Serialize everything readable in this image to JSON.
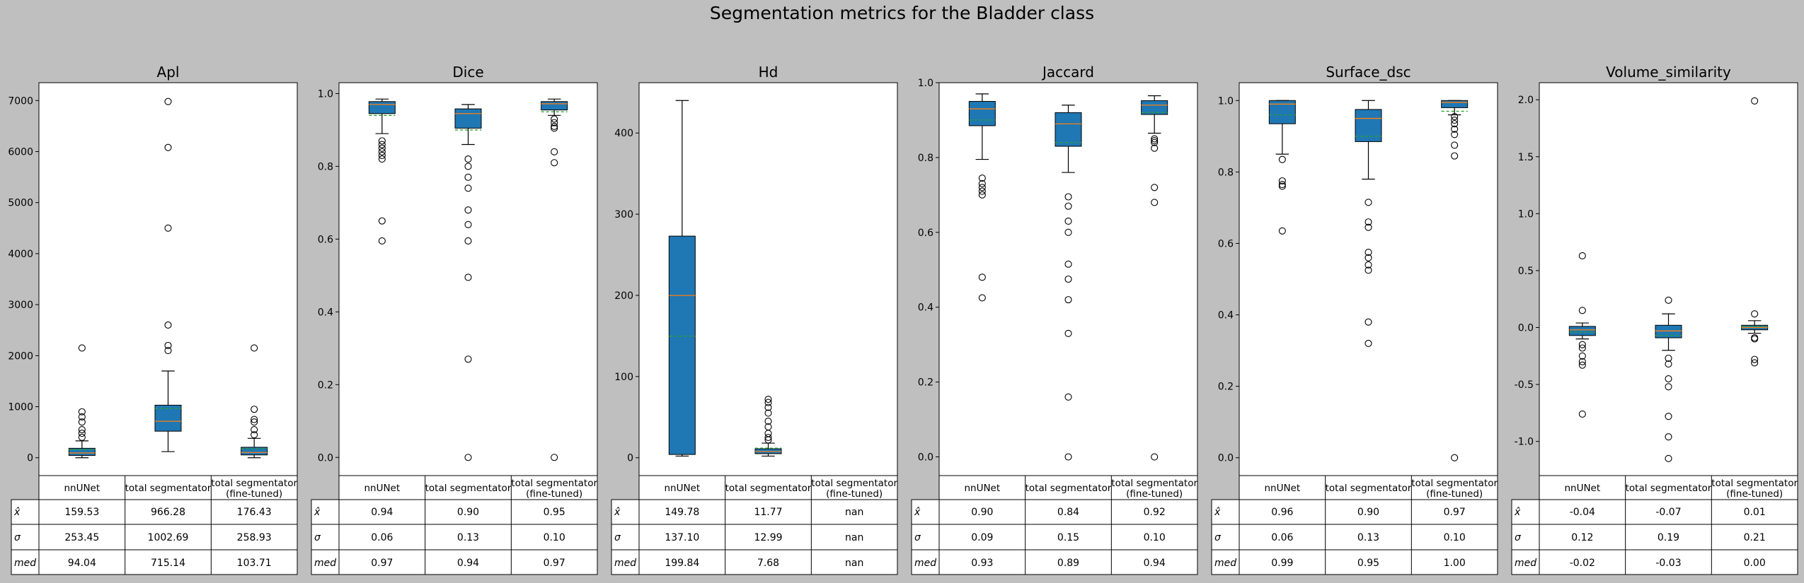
{
  "suptitle": "Segmentation metrics for the Bladder class",
  "colors": {
    "box_fill": "#1f77b4",
    "median": "#ff7f0e",
    "mean": "#2ca02c",
    "figure_bg": "#bfbfbf"
  },
  "table_row_labels": [
    "x̂",
    "σ",
    "med"
  ],
  "chart_data": [
    {
      "type": "box",
      "title": "Apl",
      "categories": [
        "nnUNet",
        "total segmentator",
        "total segmentator\n(fine-tuned)"
      ],
      "ylim": [
        -350,
        7350
      ],
      "yticks": [
        0,
        1000,
        2000,
        3000,
        4000,
        5000,
        6000,
        7000
      ],
      "boxes": [
        {
          "q1": 45,
          "median": 94.04,
          "q3": 185,
          "whislo": 0,
          "whishi": 330,
          "mean": 159.53,
          "fliers": [
            400,
            480,
            550,
            700,
            800,
            900,
            2150
          ]
        },
        {
          "q1": 520,
          "median": 715.14,
          "q3": 1030,
          "whislo": 120,
          "whishi": 1700,
          "mean": 966.28,
          "fliers": [
            2100,
            2200,
            2600,
            4500,
            6080,
            6980
          ]
        },
        {
          "q1": 55,
          "median": 103.71,
          "q3": 205,
          "whislo": 0,
          "whishi": 380,
          "mean": 176.43,
          "fliers": [
            450,
            550,
            700,
            750,
            950,
            2150
          ]
        }
      ],
      "table": [
        [
          "159.53",
          "966.28",
          "176.43"
        ],
        [
          "253.45",
          "1002.69",
          "258.93"
        ],
        [
          "94.04",
          "715.14",
          "103.71"
        ]
      ]
    },
    {
      "type": "box",
      "title": "Dice",
      "categories": [
        "nnUNet",
        "total segmentator",
        "total segmentator\n(fine-tuned)"
      ],
      "ylim": [
        -0.05,
        1.03
      ],
      "yticks": [
        0.0,
        0.2,
        0.4,
        0.6,
        0.8,
        1.0
      ],
      "boxes": [
        {
          "q1": 0.945,
          "median": 0.97,
          "q3": 0.978,
          "whislo": 0.89,
          "whishi": 0.985,
          "mean": 0.94,
          "fliers": [
            0.87,
            0.86,
            0.85,
            0.84,
            0.83,
            0.82,
            0.65,
            0.595
          ]
        },
        {
          "q1": 0.905,
          "median": 0.945,
          "q3": 0.958,
          "whislo": 0.86,
          "whishi": 0.97,
          "mean": 0.9,
          "fliers": [
            0.82,
            0.8,
            0.77,
            0.74,
            0.68,
            0.64,
            0.595,
            0.495,
            0.27,
            0.0
          ]
        },
        {
          "q1": 0.955,
          "median": 0.972,
          "q3": 0.978,
          "whislo": 0.94,
          "whishi": 0.985,
          "mean": 0.95,
          "fliers": [
            0.93,
            0.92,
            0.91,
            0.905,
            0.84,
            0.81,
            0.0
          ]
        }
      ],
      "table": [
        [
          "0.94",
          "0.90",
          "0.95"
        ],
        [
          "0.06",
          "0.13",
          "0.10"
        ],
        [
          "0.97",
          "0.94",
          "0.97"
        ]
      ]
    },
    {
      "type": "box",
      "title": "Hd",
      "categories": [
        "nnUNet",
        "total segmentator",
        "total segmentator\n(fine-tuned)"
      ],
      "ylim": [
        -22,
        462
      ],
      "yticks": [
        0,
        100,
        200,
        300,
        400
      ],
      "boxes": [
        {
          "q1": 4,
          "median": 199.84,
          "q3": 273,
          "whislo": 2,
          "whishi": 440,
          "mean": 149.78,
          "fliers": []
        },
        {
          "q1": 5,
          "median": 7.68,
          "q3": 11,
          "whislo": 2,
          "whishi": 18,
          "mean": 11.77,
          "fliers": [
            22,
            25,
            30,
            38,
            45,
            55,
            62,
            68,
            72
          ]
        },
        null
      ],
      "table": [
        [
          "149.78",
          "11.77",
          "nan"
        ],
        [
          "137.10",
          "12.99",
          "nan"
        ],
        [
          "199.84",
          "7.68",
          "nan"
        ]
      ]
    },
    {
      "type": "box",
      "title": "Jaccard",
      "categories": [
        "nnUNet",
        "total segmentator",
        "total segmentator\n(fine-tuned)"
      ],
      "ylim": [
        -0.05,
        1.0
      ],
      "yticks": [
        0.0,
        0.2,
        0.4,
        0.6,
        0.8,
        1.0
      ],
      "boxes": [
        {
          "q1": 0.885,
          "median": 0.93,
          "q3": 0.95,
          "whislo": 0.795,
          "whishi": 0.97,
          "mean": 0.9,
          "fliers": [
            0.745,
            0.73,
            0.72,
            0.71,
            0.7,
            0.48,
            0.425
          ]
        },
        {
          "q1": 0.83,
          "median": 0.89,
          "q3": 0.92,
          "whislo": 0.76,
          "whishi": 0.94,
          "mean": 0.84,
          "fliers": [
            0.695,
            0.67,
            0.63,
            0.6,
            0.515,
            0.475,
            0.42,
            0.33,
            0.16,
            0.0
          ]
        },
        {
          "q1": 0.915,
          "median": 0.94,
          "q3": 0.952,
          "whislo": 0.865,
          "whishi": 0.965,
          "mean": 0.92,
          "fliers": [
            0.85,
            0.845,
            0.84,
            0.825,
            0.72,
            0.68,
            0.0
          ]
        }
      ],
      "table": [
        [
          "0.90",
          "0.84",
          "0.92"
        ],
        [
          "0.09",
          "0.15",
          "0.10"
        ],
        [
          "0.93",
          "0.89",
          "0.94"
        ]
      ]
    },
    {
      "type": "box",
      "title": "Surface_dsc",
      "categories": [
        "nnUNet",
        "total segmentator",
        "total segmentator\n(fine-tuned)"
      ],
      "ylim": [
        -0.05,
        1.05
      ],
      "yticks": [
        0.0,
        0.2,
        0.4,
        0.6,
        0.8,
        1.0
      ],
      "boxes": [
        {
          "q1": 0.935,
          "median": 0.99,
          "q3": 1.0,
          "whislo": 0.85,
          "whishi": 1.0,
          "mean": 0.96,
          "fliers": [
            0.835,
            0.775,
            0.765,
            0.76,
            0.635
          ]
        },
        {
          "q1": 0.885,
          "median": 0.95,
          "q3": 0.975,
          "whislo": 0.78,
          "whishi": 1.0,
          "mean": 0.9,
          "fliers": [
            0.715,
            0.66,
            0.645,
            0.575,
            0.56,
            0.54,
            0.525,
            0.38,
            0.32
          ]
        },
        {
          "q1": 0.98,
          "median": 0.995,
          "q3": 1.0,
          "whislo": 0.96,
          "whishi": 1.0,
          "mean": 0.97,
          "fliers": [
            0.955,
            0.945,
            0.935,
            0.92,
            0.905,
            0.875,
            0.845,
            0.0
          ]
        }
      ],
      "table": [
        [
          "0.96",
          "0.90",
          "0.97"
        ],
        [
          "0.06",
          "0.13",
          "0.10"
        ],
        [
          "0.99",
          "0.95",
          "1.00"
        ]
      ]
    },
    {
      "type": "box",
      "title": "Volume_similarity",
      "categories": [
        "nnUNet",
        "total segmentator",
        "total segmentator\n(fine-tuned)"
      ],
      "ylim": [
        -1.3,
        2.15
      ],
      "yticks": [
        -1.0,
        -0.5,
        0.0,
        0.5,
        1.0,
        1.5,
        2.0
      ],
      "boxes": [
        {
          "q1": -0.07,
          "median": -0.02,
          "q3": 0.01,
          "whislo": -0.1,
          "whishi": 0.04,
          "mean": -0.04,
          "fliers": [
            0.63,
            0.15,
            -0.15,
            -0.18,
            -0.25,
            -0.3,
            -0.33,
            -0.76
          ]
        },
        {
          "q1": -0.09,
          "median": -0.03,
          "q3": 0.02,
          "whislo": -0.2,
          "whishi": 0.12,
          "mean": -0.07,
          "fliers": [
            0.24,
            -0.27,
            -0.32,
            -0.45,
            -0.52,
            -0.78,
            -0.96,
            -1.15
          ]
        },
        {
          "q1": -0.02,
          "median": 0.0,
          "q3": 0.02,
          "whislo": -0.05,
          "whishi": 0.06,
          "mean": 0.01,
          "fliers": [
            0.12,
            -0.09,
            -0.1,
            -0.28,
            -0.31,
            1.99
          ]
        }
      ],
      "table": [
        [
          "-0.04",
          "-0.07",
          "0.01"
        ],
        [
          "0.12",
          "0.19",
          "0.21"
        ],
        [
          "-0.02",
          "-0.03",
          "0.00"
        ]
      ]
    }
  ]
}
